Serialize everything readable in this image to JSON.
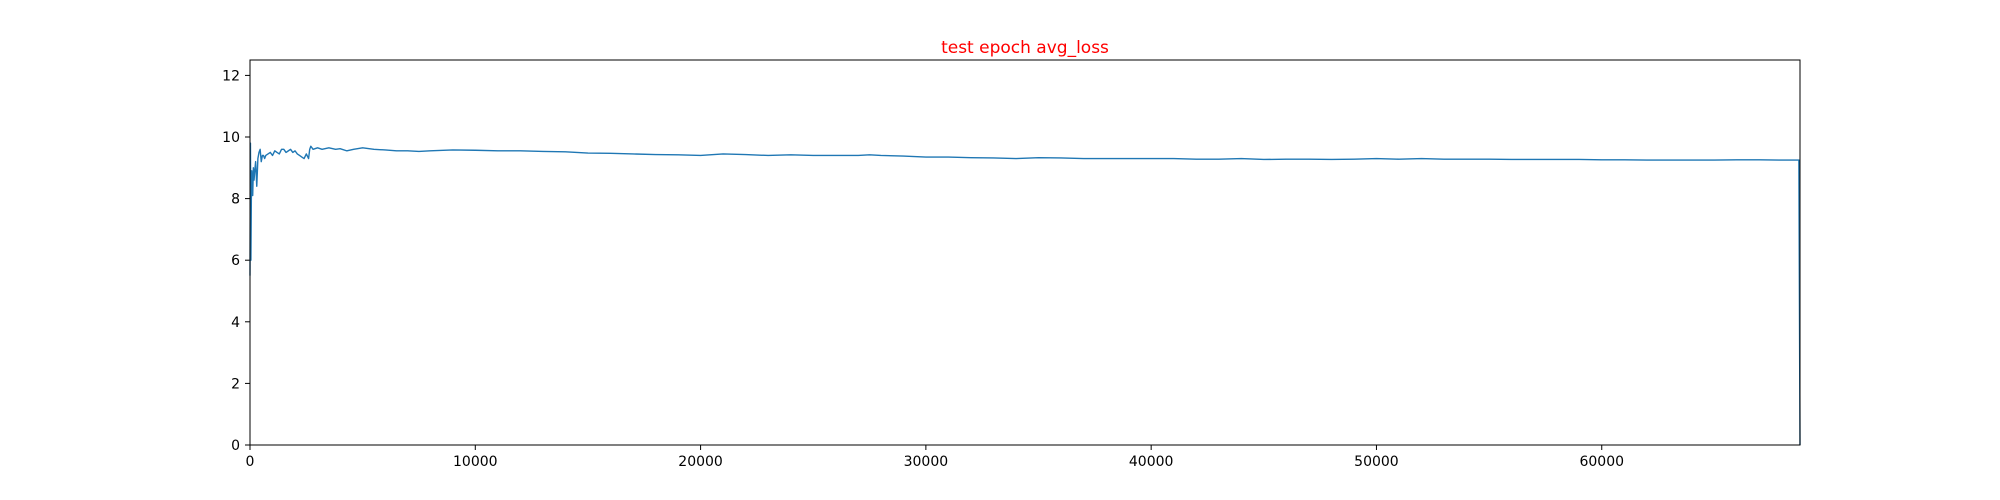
{
  "chart_data": {
    "type": "line",
    "title": "test epoch avg_loss",
    "title_color": "#ff0000",
    "xlabel": "",
    "ylabel": "",
    "xlim": [
      0,
      68800
    ],
    "ylim": [
      0,
      12.5
    ],
    "xticks": [
      0,
      10000,
      20000,
      30000,
      40000,
      50000,
      60000
    ],
    "yticks": [
      0,
      2,
      4,
      6,
      8,
      10,
      12
    ],
    "grid": false,
    "series": [
      {
        "color": "#1f77b4",
        "x": [
          0,
          20,
          40,
          60,
          80,
          100,
          120,
          150,
          180,
          210,
          250,
          300,
          350,
          400,
          450,
          500,
          550,
          600,
          650,
          700,
          800,
          900,
          1000,
          1100,
          1200,
          1300,
          1400,
          1500,
          1600,
          1700,
          1800,
          1900,
          2000,
          2100,
          2200,
          2300,
          2400,
          2500,
          2600,
          2650,
          2700,
          2800,
          3000,
          3200,
          3500,
          3800,
          4000,
          4300,
          4600,
          5000,
          5500,
          6000,
          6500,
          7000,
          7500,
          8000,
          9000,
          10000,
          11000,
          12000,
          13000,
          14000,
          15000,
          16000,
          17000,
          18000,
          19000,
          20000,
          21000,
          22000,
          23000,
          24000,
          25000,
          26000,
          27000,
          27500,
          28000,
          29000,
          30000,
          31000,
          32000,
          33000,
          34000,
          35000,
          36000,
          37000,
          38000,
          39000,
          40000,
          41000,
          42000,
          43000,
          44000,
          45000,
          46000,
          47000,
          48000,
          49000,
          50000,
          51000,
          52000,
          53000,
          54000,
          55000,
          56000,
          57000,
          58000,
          59000,
          60000,
          61000,
          62000,
          63000,
          64000,
          65000,
          66000,
          67000,
          68000,
          68750,
          68800
        ],
        "y": [
          5.5,
          9.8,
          6.0,
          8.0,
          8.9,
          8.3,
          8.1,
          9.0,
          8.6,
          8.9,
          9.2,
          8.4,
          9.3,
          9.5,
          9.6,
          9.2,
          9.4,
          9.4,
          9.3,
          9.4,
          9.45,
          9.5,
          9.4,
          9.55,
          9.5,
          9.45,
          9.6,
          9.6,
          9.5,
          9.55,
          9.6,
          9.5,
          9.55,
          9.45,
          9.4,
          9.35,
          9.3,
          9.45,
          9.3,
          9.6,
          9.7,
          9.6,
          9.65,
          9.6,
          9.65,
          9.6,
          9.62,
          9.55,
          9.6,
          9.65,
          9.6,
          9.58,
          9.55,
          9.55,
          9.53,
          9.55,
          9.58,
          9.57,
          9.55,
          9.55,
          9.53,
          9.52,
          9.48,
          9.47,
          9.45,
          9.43,
          9.42,
          9.4,
          9.45,
          9.43,
          9.4,
          9.42,
          9.4,
          9.4,
          9.4,
          9.42,
          9.4,
          9.38,
          9.35,
          9.35,
          9.33,
          9.32,
          9.3,
          9.33,
          9.32,
          9.3,
          9.3,
          9.3,
          9.3,
          9.3,
          9.28,
          9.28,
          9.3,
          9.27,
          9.28,
          9.28,
          9.27,
          9.28,
          9.3,
          9.28,
          9.3,
          9.28,
          9.28,
          9.28,
          9.27,
          9.27,
          9.27,
          9.27,
          9.26,
          9.26,
          9.25,
          9.25,
          9.25,
          9.25,
          9.26,
          9.26,
          9.25,
          9.25,
          0
        ]
      }
    ]
  }
}
